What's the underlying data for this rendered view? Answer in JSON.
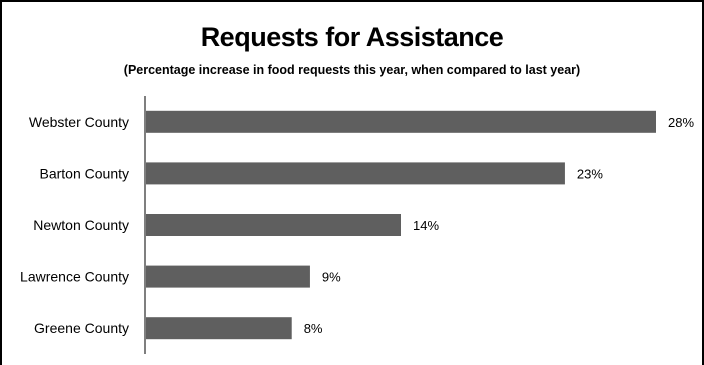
{
  "chart_data": {
    "type": "bar",
    "orientation": "horizontal",
    "title": "Requests for Assistance",
    "subtitle": "(Percentage increase in food requests this year, when compared to last year)",
    "categories": [
      "Webster County",
      "Barton County",
      "Newton County",
      "Lawrence County",
      "Greene County"
    ],
    "values": [
      28,
      23,
      14,
      9,
      8
    ],
    "data_labels": [
      "28%",
      "23%",
      "14%",
      "9%",
      "8%"
    ],
    "value_unit": "%",
    "xlim": [
      0,
      30
    ],
    "grid": false,
    "legend": "none",
    "bar_color": "#5f5f5f",
    "axis_color": "#7f7f7f"
  }
}
